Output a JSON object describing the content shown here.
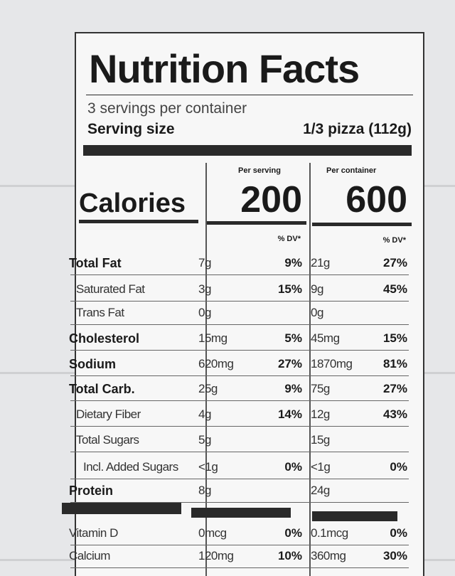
{
  "header": {
    "title": "Nutrition Facts",
    "servings": "3 servings per container",
    "serving_size_label": "Serving size",
    "serving_size": "1/3 pizza (112g)"
  },
  "columns": [
    "Per serving",
    "Per container"
  ],
  "calories": {
    "label": "Calories",
    "values": [
      "200",
      "600"
    ]
  },
  "dv_header": [
    "% DV*",
    "% DV*"
  ],
  "rows": [
    {
      "name": "Total Fat",
      "bold": true,
      "indent": 0,
      "serving": [
        "7g",
        "9%"
      ],
      "container": [
        "21g",
        "27%"
      ]
    },
    {
      "name": "Saturated Fat",
      "bold": false,
      "indent": 1,
      "serving": [
        "3g",
        "15%"
      ],
      "container": [
        "9g",
        "45%"
      ]
    },
    {
      "name": "Trans Fat",
      "bold": false,
      "indent": 1,
      "serving": [
        "0g"
      ],
      "container": [
        "0g"
      ]
    },
    {
      "name": "Cholesterol",
      "bold": true,
      "indent": 0,
      "serving": [
        "15mg",
        "5%"
      ],
      "container": [
        "45mg",
        "15%"
      ]
    },
    {
      "name": "Sodium",
      "bold": true,
      "indent": 0,
      "serving": [
        "620mg",
        "27%"
      ],
      "container": [
        "1870mg",
        "81%"
      ]
    },
    {
      "name": "Total Carb.",
      "bold": true,
      "indent": 0,
      "serving": [
        "25g",
        "9%"
      ],
      "container": [
        "75g",
        "27%"
      ]
    },
    {
      "name": "Dietary Fiber",
      "bold": false,
      "indent": 1,
      "serving": [
        "4g",
        "14%"
      ],
      "container": [
        "12g",
        "43%"
      ]
    },
    {
      "name": "Total Sugars",
      "bold": false,
      "indent": 1,
      "serving": [
        "5g"
      ],
      "container": [
        "15g"
      ]
    },
    {
      "name": "Incl. Added Sugars",
      "bold": false,
      "indent": 2,
      "serving": [
        "<1g",
        "0%"
      ],
      "container": [
        "<1g",
        "0%"
      ]
    },
    {
      "name": "Protein",
      "bold": true,
      "indent": 0,
      "serving": [
        "8g"
      ],
      "container": [
        "24g"
      ]
    }
  ],
  "vitamins": [
    {
      "name": "Vitamin D",
      "serving": [
        "0mcg",
        "0%"
      ],
      "container": [
        "0.1mcg",
        "0%"
      ]
    },
    {
      "name": "Calcium",
      "serving": [
        "120mg",
        "10%"
      ],
      "container": [
        "360mg",
        "30%"
      ]
    }
  ]
}
